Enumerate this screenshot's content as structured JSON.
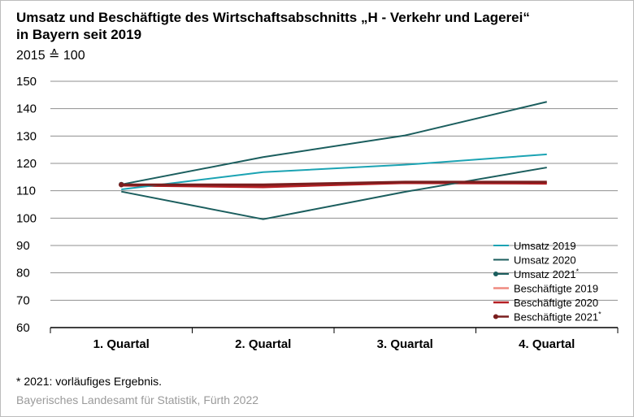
{
  "header": {
    "title_line1": "Umsatz und Beschäftigte des Wirtschaftsabschnitts „H - Verkehr und Lagerei“",
    "title_line2": "in Bayern seit 2019",
    "subtitle": "2015 ≙ 100"
  },
  "footer": {
    "footnote": "*  2021: vorläufiges Ergebnis.",
    "source": "Bayerisches Landesamt für Statistik, Fürth 2022"
  },
  "chart_data": {
    "type": "line",
    "categories": [
      "1. Quartal",
      "2. Quartal",
      "3. Quartal",
      "4. Quartal"
    ],
    "ylim": [
      60,
      150
    ],
    "yticks": [
      60,
      70,
      80,
      90,
      100,
      110,
      120,
      130,
      140,
      150
    ],
    "grid": true,
    "legend_position": "bottom-right",
    "series": [
      {
        "name": "Umsatz 2019",
        "color": "#1ba3b3",
        "marker": false,
        "values": [
          110.5,
          116.8,
          119.5,
          123.3
        ]
      },
      {
        "name": "Umsatz 2020",
        "color": "#1b5e5e",
        "marker": false,
        "values": [
          109.7,
          99.6,
          109.6,
          118.5
        ]
      },
      {
        "name": "Umsatz 2021*",
        "color": "#1b5e5e",
        "marker": true,
        "values": [
          112.3,
          122.3,
          130.2,
          142.5
        ]
      },
      {
        "name": "Beschäftigte 2019",
        "color": "#ef8a80",
        "marker": false,
        "values": [
          111.8,
          111.6,
          113.0,
          113.0
        ]
      },
      {
        "name": "Beschäftigte 2020",
        "color": "#b51f24",
        "marker": false,
        "values": [
          112.0,
          111.4,
          112.9,
          112.7
        ]
      },
      {
        "name": "Beschäftigte 2021*",
        "color": "#7a1e1e",
        "marker": true,
        "values": [
          112.2,
          112.2,
          113.2,
          113.2
        ]
      }
    ]
  }
}
